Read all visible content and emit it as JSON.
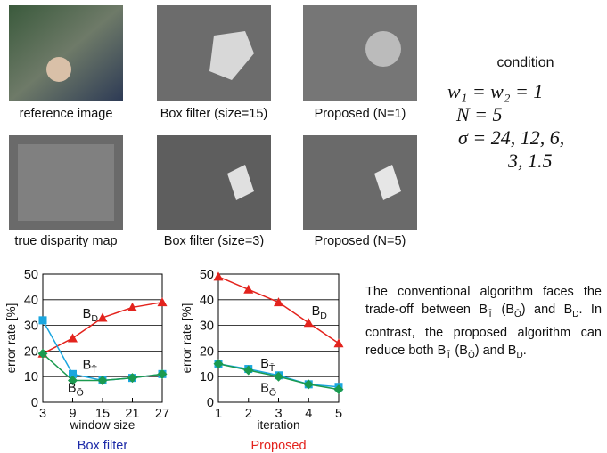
{
  "images": [
    {
      "caption": "reference image"
    },
    {
      "caption": "Box filter (size=15)"
    },
    {
      "caption": "Proposed (N=1)"
    },
    {
      "caption": "true disparity map"
    },
    {
      "caption": "Box filter (size=3)"
    },
    {
      "caption": "Proposed (N=5)"
    }
  ],
  "condition": {
    "title": "condition",
    "lines": [
      "w₁ = w₂ = 1",
      "N = 5",
      "σ = 24, 12, 6,",
      "3, 1.5"
    ]
  },
  "chart_data": [
    {
      "type": "line",
      "title": "Box filter",
      "title_color": "#1c2aa8",
      "xlabel": "window size",
      "ylabel": "error rate [%]",
      "x": [
        3,
        9,
        15,
        21,
        27
      ],
      "xlim": [
        3,
        27
      ],
      "xticks": [
        3,
        9,
        15,
        21,
        27
      ],
      "ylim": [
        0,
        50
      ],
      "yticks": [
        0,
        10,
        20,
        30,
        40,
        50
      ],
      "grid": true,
      "series": [
        {
          "name": "B",
          "subscript": "D",
          "color": "#e3231d",
          "marker": "triangle",
          "values": [
            19,
            25,
            33,
            37,
            39
          ]
        },
        {
          "name": "B",
          "subscript": "T̄",
          "color": "#1aa6df",
          "marker": "square",
          "values": [
            32,
            11,
            8.5,
            9.5,
            11
          ]
        },
        {
          "name": "B",
          "subscript": "Ō",
          "color": "#1a9a4f",
          "marker": "diamond",
          "values": [
            19,
            8.5,
            8.5,
            9.5,
            11
          ]
        }
      ]
    },
    {
      "type": "line",
      "title": "Proposed",
      "title_color": "#e3231d",
      "xlabel": "iteration",
      "ylabel": "error rate [%]",
      "x": [
        1,
        2,
        3,
        4,
        5
      ],
      "xlim": [
        1,
        5
      ],
      "xticks": [
        1,
        2,
        3,
        4,
        5
      ],
      "ylim": [
        0,
        50
      ],
      "yticks": [
        0,
        10,
        20,
        30,
        40,
        50
      ],
      "grid": true,
      "series": [
        {
          "name": "B",
          "subscript": "D",
          "color": "#e3231d",
          "marker": "triangle",
          "values": [
            49,
            44,
            39,
            31,
            23
          ]
        },
        {
          "name": "B",
          "subscript": "T̄",
          "color": "#1aa6df",
          "marker": "square",
          "values": [
            15,
            13,
            10.5,
            7,
            6
          ]
        },
        {
          "name": "B",
          "subscript": "Ō",
          "color": "#1a9a4f",
          "marker": "diamond",
          "values": [
            15,
            12.5,
            10,
            7,
            5
          ]
        }
      ]
    }
  ],
  "paragraph": [
    {
      "t": "The conventional algorithm faces the trade-off between B"
    },
    {
      "sub": "T̄"
    },
    {
      "t": " (B"
    },
    {
      "sub": "Ō"
    },
    {
      "t": ") and B"
    },
    {
      "sub": "D"
    },
    {
      "t": ". In contrast, the proposed algorithm can reduce both B"
    },
    {
      "sub": "T̄"
    },
    {
      "t": " (B"
    },
    {
      "sub": "Ō"
    },
    {
      "t": ") and B"
    },
    {
      "sub": "D"
    },
    {
      "t": "."
    }
  ]
}
